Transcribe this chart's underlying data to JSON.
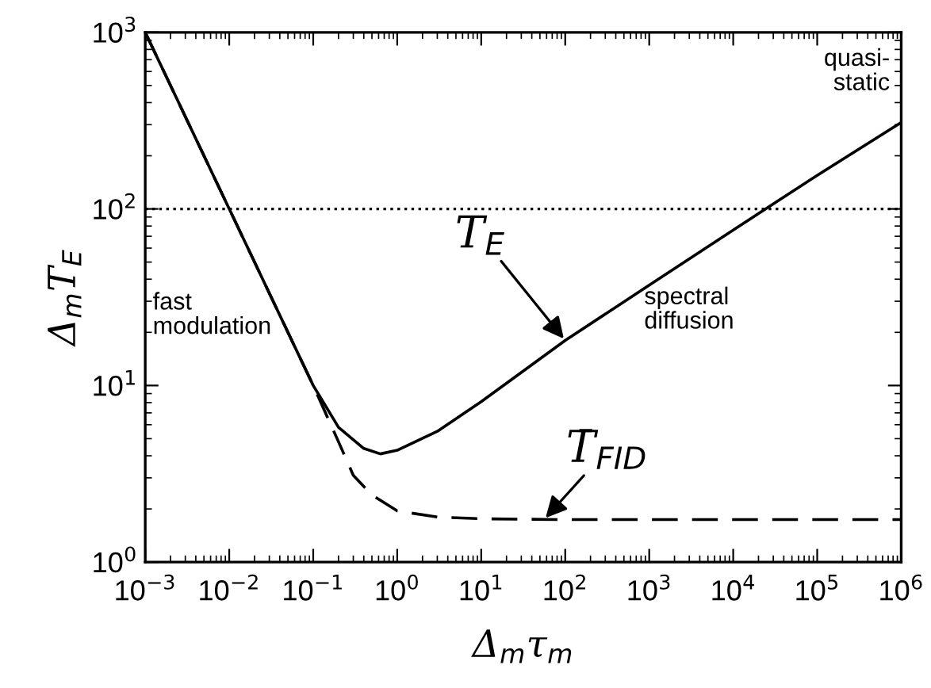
{
  "chart_data": {
    "type": "line",
    "xlabel": "Δ$_{m}$τ$_{m}$",
    "ylabel": "Δ$_{m}$T$_{E}$",
    "log": "xy",
    "xlim": [
      0.001,
      1000000
    ],
    "ylim": [
      1,
      1000
    ],
    "xticks": [
      {
        "value": 0.001,
        "label": "10$^{−3}$"
      },
      {
        "value": 0.01,
        "label": "10$^{−2}$"
      },
      {
        "value": 0.1,
        "label": "10$^{−1}$"
      },
      {
        "value": 1,
        "label": "10$^{0}$"
      },
      {
        "value": 10,
        "label": "10$^{1}$"
      },
      {
        "value": 100,
        "label": "10$^{2}$"
      },
      {
        "value": 1000,
        "label": "10$^{3}$"
      },
      {
        "value": 10000,
        "label": "10$^{4}$"
      },
      {
        "value": 100000,
        "label": "10$^{5}$"
      },
      {
        "value": 1000000,
        "label": "10$^{6}$"
      }
    ],
    "yticks": [
      {
        "value": 1,
        "label": "10$^{0}$"
      },
      {
        "value": 10,
        "label": "10$^{1}$"
      },
      {
        "value": 100,
        "label": "10$^{2}$"
      },
      {
        "value": 1000,
        "label": "10$^{3}$"
      }
    ],
    "grid": false,
    "legend": false,
    "marker": "none",
    "series": [
      {
        "color": "#000000",
        "line_style": "solid",
        "x": [
          0.001,
          0.01,
          0.1,
          0.2,
          0.4,
          0.63,
          1,
          3,
          10,
          100,
          1000,
          10000,
          100000,
          1000000
        ],
        "values": [
          1000,
          100,
          10,
          5.8,
          4.4,
          4.1,
          4.3,
          5.5,
          8.1,
          18,
          37,
          76,
          155,
          309
        ]
      },
      {
        "color": "#000000",
        "line_style": "dashed",
        "x": [
          0.001,
          0.01,
          0.1,
          0.2,
          0.3,
          0.5,
          1,
          3,
          10,
          100,
          1000000
        ],
        "values": [
          1000,
          100,
          10,
          4.8,
          3.1,
          2.4,
          1.95,
          1.8,
          1.76,
          1.74,
          1.74
        ]
      }
    ],
    "ref_lines": [
      {
        "axis": "y",
        "value": 100,
        "line_style": "dotted",
        "color": "#000000"
      }
    ],
    "annotations": [
      {
        "text": "T$_{E}$",
        "x": 100,
        "y": 18
      },
      {
        "text": "T̄$_{FID}$",
        "x": 56,
        "y": 1.74
      },
      "fast\nmodulation",
      "spectral\ndiffusion",
      "quasi-\nstatic"
    ]
  }
}
